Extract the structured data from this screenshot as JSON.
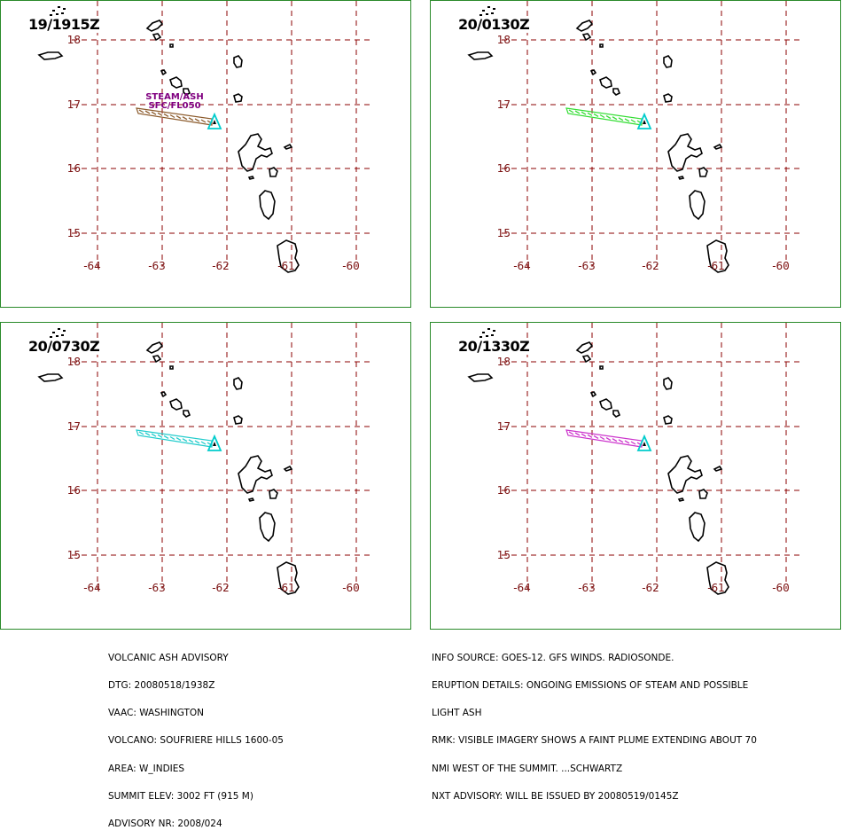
{
  "panels": [
    {
      "time": "19/1915Z",
      "plume_color": "#8b5a2b",
      "labels": [
        "STEAM/ASH",
        "SFC/FL050"
      ]
    },
    {
      "time": "20/0130Z",
      "plume_color": "#33dd33",
      "labels": []
    },
    {
      "time": "20/0730Z",
      "plume_color": "#22cccc",
      "labels": []
    },
    {
      "time": "20/1330Z",
      "plume_color": "#cc33cc",
      "labels": []
    }
  ],
  "lat_labels": [
    "18",
    "17",
    "16",
    "15"
  ],
  "lon_labels": [
    "-64",
    "-63",
    "-62",
    "-61",
    "-60"
  ],
  "colors": {
    "grid": "#8b0000",
    "coast": "#000000",
    "volcano": "#00cccc",
    "border": "#2a8a2a"
  },
  "advisory_left": [
    "VOLCANIC ASH ADVISORY",
    "DTG: 20080518/1938Z",
    "VAAC: WASHINGTON",
    "VOLCANO: SOUFRIERE HILLS 1600-05",
    "AREA: W_INDIES",
    "SUMMIT ELEV: 3002 FT (915 M)",
    "ADVISORY NR: 2008/024"
  ],
  "advisory_right": [
    "INFO SOURCE: GOES-12. GFS WINDS. RADIOSONDE.",
    "ERUPTION DETAILS: ONGOING EMISSIONS OF STEAM AND POSSIBLE",
    "LIGHT ASH",
    "RMK: VISIBLE IMAGERY SHOWS A FAINT PLUME EXTENDING ABOUT 70",
    "NMI WEST OF THE SUMMIT. ...SCHWARTZ",
    "NXT ADVISORY: WILL BE ISSUED BY 20080519/0145Z"
  ]
}
